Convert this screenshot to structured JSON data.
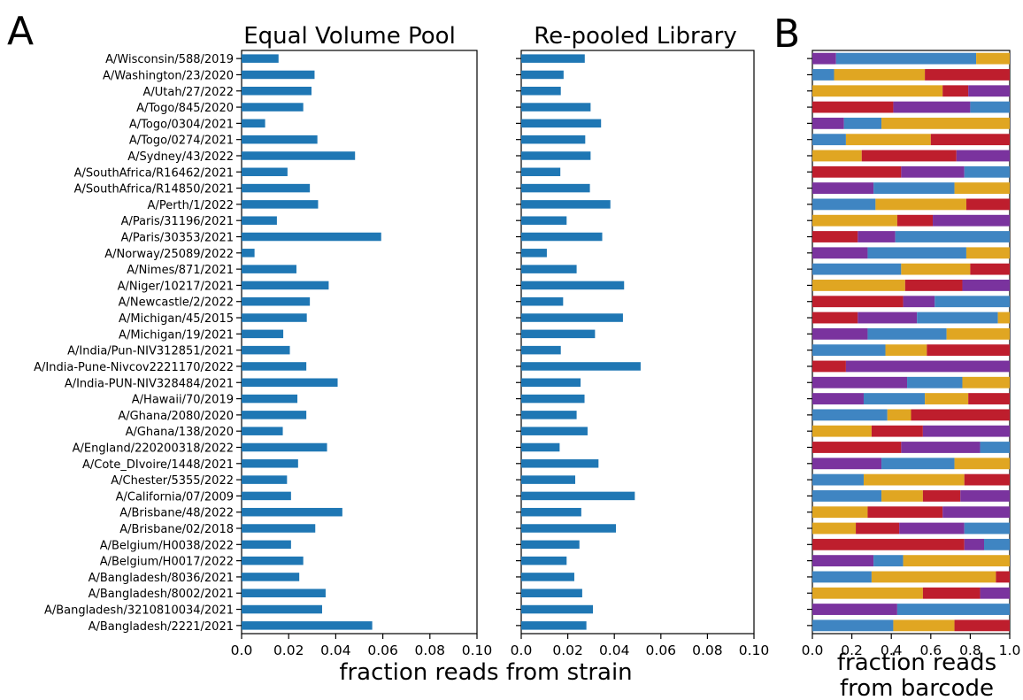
{
  "panel_labels": [
    "A",
    "B"
  ],
  "colors": {
    "bar": "#1f77b4",
    "barcode_series": [
      "#1f77b4",
      "#d62728",
      "#7b2f9e",
      "#e1a81c"
    ],
    "barcode_map": {
      "B": "#3f85c2",
      "R": "#be1e2d",
      "P": "#7a339e",
      "Y": "#e0a622"
    }
  },
  "chart_data": [
    {
      "type": "bar",
      "orientation": "horizontal",
      "title": "Equal Volume Pool",
      "xlabel": "fraction reads from strain",
      "xlim": [
        0,
        0.1
      ],
      "xticks": [
        "0.0",
        "0.02",
        "0.04",
        "0.06",
        "0.08",
        "0.10"
      ],
      "categories": [
        "A/Wisconsin/588/2019",
        "A/Washington/23/2020",
        "A/Utah/27/2022",
        "A/Togo/845/2020",
        "A/Togo/0304/2021",
        "A/Togo/0274/2021",
        "A/Sydney/43/2022",
        "A/SouthAfrica/R16462/2021",
        "A/SouthAfrica/R14850/2021",
        "A/Perth/1/2022",
        "A/Paris/31196/2021",
        "A/Paris/30353/2021",
        "A/Norway/25089/2022",
        "A/Nimes/871/2021",
        "A/Niger/10217/2021",
        "A/Newcastle/2/2022",
        "A/Michigan/45/2015",
        "A/Michigan/19/2021",
        "A/India/Pun-NIV312851/2021",
        "A/India-Pune-Nivcov2221170/2022",
        "A/India-PUN-NIV328484/2021",
        "A/Hawaii/70/2019",
        "A/Ghana/2080/2020",
        "A/Ghana/138/2020",
        "A/England/220200318/2022",
        "A/Cote_DIvoire/1448/2021",
        "A/Chester/5355/2022",
        "A/California/07/2009",
        "A/Brisbane/48/2022",
        "A/Brisbane/02/2018",
        "A/Belgium/H0038/2022",
        "A/Belgium/H0017/2022",
        "A/Bangladesh/8036/2021",
        "A/Bangladesh/8002/2021",
        "A/Bangladesh/3210810034/2021",
        "A/Bangladesh/2221/2021"
      ],
      "values": [
        0.0157,
        0.031,
        0.0297,
        0.0262,
        0.01,
        0.0322,
        0.0482,
        0.0195,
        0.029,
        0.0325,
        0.015,
        0.0593,
        0.0055,
        0.0233,
        0.037,
        0.029,
        0.0277,
        0.0177,
        0.0205,
        0.0275,
        0.0408,
        0.0237,
        0.0275,
        0.0175,
        0.0363,
        0.024,
        0.0193,
        0.021,
        0.0428,
        0.0313,
        0.021,
        0.0262,
        0.0245,
        0.0357,
        0.0342,
        0.0555
      ]
    },
    {
      "type": "bar",
      "orientation": "horizontal",
      "title": "Re-pooled Library",
      "xlim": [
        0,
        0.1
      ],
      "xticks": [
        "0.0",
        "0.02",
        "0.04",
        "0.06",
        "0.08",
        "0.10"
      ],
      "values": [
        0.0273,
        0.0182,
        0.017,
        0.0298,
        0.0343,
        0.0275,
        0.0298,
        0.0168,
        0.0295,
        0.0383,
        0.0195,
        0.0348,
        0.011,
        0.0238,
        0.0442,
        0.018,
        0.0437,
        0.0317,
        0.017,
        0.0513,
        0.0255,
        0.0272,
        0.0238,
        0.0285,
        0.0165,
        0.0332,
        0.0232,
        0.0488,
        0.0258,
        0.0407,
        0.025,
        0.0195,
        0.0228,
        0.0262,
        0.0308,
        0.028
      ]
    },
    {
      "type": "bar",
      "orientation": "horizontal",
      "stacked": true,
      "xlabel": "fraction reads from barcode",
      "xlim": [
        0,
        1.0
      ],
      "xticks": [
        "0.0",
        "0.2",
        "0.4",
        "0.6",
        "0.8",
        "1.0"
      ],
      "rows": [
        [
          [
            "P",
            0.12
          ],
          [
            "B",
            0.71
          ],
          [
            "Y",
            0.17
          ]
        ],
        [
          [
            "B",
            0.11
          ],
          [
            "Y",
            0.46
          ],
          [
            "R",
            0.43
          ]
        ],
        [
          [
            "Y",
            0.66
          ],
          [
            "R",
            0.13
          ],
          [
            "P",
            0.21
          ]
        ],
        [
          [
            "R",
            0.41
          ],
          [
            "P",
            0.39
          ],
          [
            "B",
            0.2
          ]
        ],
        [
          [
            "P",
            0.16
          ],
          [
            "B",
            0.19
          ],
          [
            "Y",
            0.65
          ]
        ],
        [
          [
            "B",
            0.17
          ],
          [
            "Y",
            0.43
          ],
          [
            "R",
            0.4
          ]
        ],
        [
          [
            "Y",
            0.25
          ],
          [
            "R",
            0.48
          ],
          [
            "P",
            0.27
          ]
        ],
        [
          [
            "R",
            0.45
          ],
          [
            "P",
            0.32
          ],
          [
            "B",
            0.23
          ]
        ],
        [
          [
            "P",
            0.31
          ],
          [
            "B",
            0.41
          ],
          [
            "Y",
            0.28
          ]
        ],
        [
          [
            "B",
            0.32
          ],
          [
            "Y",
            0.46
          ],
          [
            "R",
            0.22
          ]
        ],
        [
          [
            "Y",
            0.43
          ],
          [
            "R",
            0.18
          ],
          [
            "P",
            0.39
          ]
        ],
        [
          [
            "R",
            0.23
          ],
          [
            "P",
            0.19
          ],
          [
            "B",
            0.58
          ]
        ],
        [
          [
            "P",
            0.28
          ],
          [
            "B",
            0.5
          ],
          [
            "Y",
            0.22
          ]
        ],
        [
          [
            "B",
            0.45
          ],
          [
            "Y",
            0.35
          ],
          [
            "R",
            0.2
          ]
        ],
        [
          [
            "Y",
            0.47
          ],
          [
            "R",
            0.29
          ],
          [
            "P",
            0.24
          ]
        ],
        [
          [
            "R",
            0.46
          ],
          [
            "P",
            0.16
          ],
          [
            "B",
            0.38
          ]
        ],
        [
          [
            "R",
            0.23
          ],
          [
            "P",
            0.3
          ],
          [
            "B",
            0.41
          ],
          [
            "Y",
            0.06
          ]
        ],
        [
          [
            "P",
            0.28
          ],
          [
            "B",
            0.4
          ],
          [
            "Y",
            0.32
          ]
        ],
        [
          [
            "B",
            0.37
          ],
          [
            "Y",
            0.21
          ],
          [
            "R",
            0.42
          ]
        ],
        [
          [
            "R",
            0.17
          ],
          [
            "P",
            0.83
          ]
        ],
        [
          [
            "P",
            0.48
          ],
          [
            "B",
            0.28
          ],
          [
            "Y",
            0.24
          ]
        ],
        [
          [
            "P",
            0.26
          ],
          [
            "B",
            0.31
          ],
          [
            "Y",
            0.22
          ],
          [
            "R",
            0.21
          ]
        ],
        [
          [
            "B",
            0.38
          ],
          [
            "Y",
            0.12
          ],
          [
            "R",
            0.5
          ]
        ],
        [
          [
            "Y",
            0.3
          ],
          [
            "R",
            0.26
          ],
          [
            "P",
            0.44
          ]
        ],
        [
          [
            "R",
            0.45
          ],
          [
            "P",
            0.4
          ],
          [
            "B",
            0.15
          ]
        ],
        [
          [
            "P",
            0.35
          ],
          [
            "B",
            0.37
          ],
          [
            "Y",
            0.28
          ]
        ],
        [
          [
            "B",
            0.26
          ],
          [
            "Y",
            0.51
          ],
          [
            "R",
            0.23
          ]
        ],
        [
          [
            "B",
            0.35
          ],
          [
            "Y",
            0.21
          ],
          [
            "R",
            0.19
          ],
          [
            "P",
            0.25
          ]
        ],
        [
          [
            "Y",
            0.28
          ],
          [
            "R",
            0.38
          ],
          [
            "P",
            0.34
          ]
        ],
        [
          [
            "Y",
            0.22
          ],
          [
            "R",
            0.22
          ],
          [
            "P",
            0.33
          ],
          [
            "B",
            0.23
          ]
        ],
        [
          [
            "R",
            0.77
          ],
          [
            "P",
            0.1
          ],
          [
            "B",
            0.13
          ]
        ],
        [
          [
            "P",
            0.31
          ],
          [
            "B",
            0.15
          ],
          [
            "Y",
            0.54
          ]
        ],
        [
          [
            "B",
            0.3
          ],
          [
            "Y",
            0.63
          ],
          [
            "R",
            0.07
          ]
        ],
        [
          [
            "Y",
            0.56
          ],
          [
            "R",
            0.29
          ],
          [
            "P",
            0.15
          ]
        ],
        [
          [
            "P",
            0.43
          ],
          [
            "B",
            0.57
          ]
        ],
        [
          [
            "B",
            0.41
          ],
          [
            "Y",
            0.31
          ],
          [
            "R",
            0.28
          ]
        ]
      ]
    }
  ]
}
